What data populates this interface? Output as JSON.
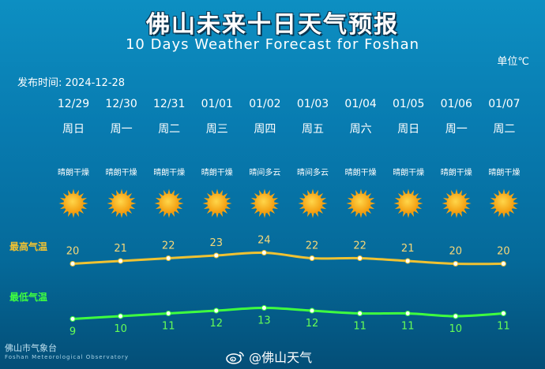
{
  "header": {
    "title": "佛山未来十日天气预报",
    "subtitle": "10 Days Weather Forecast for Foshan",
    "unit": "单位℃",
    "issued": "发布时间:  2024-12-28"
  },
  "days": [
    {
      "date": "12/29",
      "weekday": "周日",
      "weather": "晴朗干燥",
      "icon": "sun-icon"
    },
    {
      "date": "12/30",
      "weekday": "周一",
      "weather": "晴朗干燥",
      "icon": "sun-icon"
    },
    {
      "date": "12/31",
      "weekday": "周二",
      "weather": "晴朗干燥",
      "icon": "sun-icon"
    },
    {
      "date": "01/01",
      "weekday": "周三",
      "weather": "晴朗干燥",
      "icon": "sun-icon"
    },
    {
      "date": "01/02",
      "weekday": "周四",
      "weather": "晴间多云",
      "icon": "sun-icon"
    },
    {
      "date": "01/03",
      "weekday": "周五",
      "weather": "晴间多云",
      "icon": "sun-icon"
    },
    {
      "date": "01/04",
      "weekday": "周六",
      "weather": "晴朗干燥",
      "icon": "sun-icon"
    },
    {
      "date": "01/05",
      "weekday": "周日",
      "weather": "晴朗干燥",
      "icon": "sun-icon"
    },
    {
      "date": "01/06",
      "weekday": "周一",
      "weather": "晴朗干燥",
      "icon": "sun-icon"
    },
    {
      "date": "01/07",
      "weekday": "周二",
      "weather": "晴朗干燥",
      "icon": "sun-icon"
    }
  ],
  "chart_data": {
    "type": "line",
    "categories": [
      "12/29",
      "12/30",
      "12/31",
      "01/01",
      "01/02",
      "01/03",
      "01/04",
      "01/05",
      "01/06",
      "01/07"
    ],
    "series": [
      {
        "name": "最高气温",
        "values": [
          20,
          21,
          22,
          23,
          24,
          22,
          22,
          21,
          20,
          20
        ],
        "color": "#f0c232"
      },
      {
        "name": "最低气温",
        "values": [
          9,
          10,
          11,
          12,
          13,
          12,
          11,
          11,
          10,
          11
        ],
        "color": "#3fff3f"
      }
    ]
  },
  "footer": {
    "org_zh": "佛山市气象台",
    "org_en": "Foshan Meteorological Observatory",
    "weibo": "@佛山天气"
  }
}
